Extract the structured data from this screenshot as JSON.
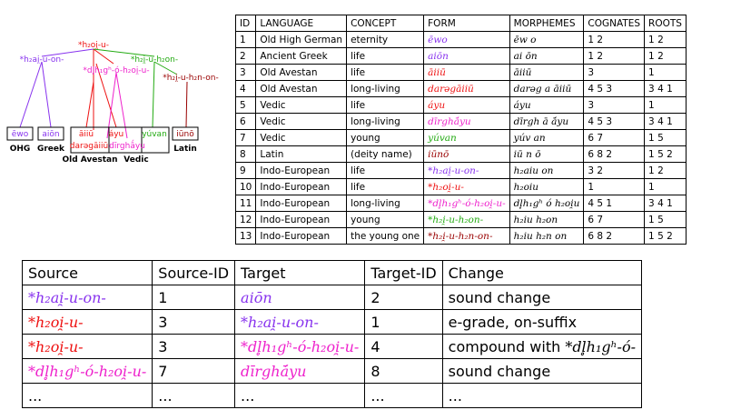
{
  "colors": {
    "red": "#ee1111",
    "purple": "#8833ee",
    "magenta": "#ee22cc",
    "green": "#22aa11",
    "darkred": "#990000",
    "blue": "#3344cc"
  },
  "tree": {
    "nodes": [
      {
        "id": "root",
        "label": "*h₂oi̯-u-",
        "color": "#ee1111"
      },
      {
        "id": "aiu",
        "label": "*h₂ai̯-u-on-",
        "color": "#8833ee"
      },
      {
        "id": "dlih",
        "label": "*dl̥h₁gʰ-ó-h₂oi̯-u-",
        "color": "#ee22cc"
      },
      {
        "id": "young",
        "label": "*h₂i̯-u-h₂on-",
        "color": "#22aa11"
      },
      {
        "id": "latin_proto",
        "label": "*h₂i̯-u-h₂n-on-",
        "color": "#990000"
      }
    ],
    "leaves": [
      {
        "id": "ewo",
        "label": "ēwo",
        "color": "#8833ee"
      },
      {
        "id": "aion",
        "label": "aiōn",
        "color": "#8833ee"
      },
      {
        "id": "aiiu",
        "label": "āiiū",
        "color": "#ee1111"
      },
      {
        "id": "ayu",
        "label": "áyu",
        "color": "#ee1111"
      },
      {
        "id": "yuvan",
        "label": "yúvan",
        "color": "#22aa11"
      },
      {
        "id": "darega",
        "label": "darəgāiiū",
        "color": "#ee1111"
      },
      {
        "id": "dirgha",
        "label": "dīrghā́yu",
        "color": "#ee22cc"
      },
      {
        "id": "iuno",
        "label": "iūnō",
        "color": "#990000"
      }
    ],
    "languages": [
      "OHG",
      "Greek",
      "Old Avestan",
      "Vedic",
      "Latin"
    ]
  },
  "top_table": {
    "headers": [
      "ID",
      "LANGUAGE",
      "CONCEPT",
      "FORM",
      "MORPHEMES",
      "COGNATES",
      "ROOTS"
    ],
    "rows": [
      {
        "id": "1",
        "language": "Old High German",
        "concept": "eternity",
        "form": "ēwo",
        "color": "#8833ee",
        "morphemes": "ēw o",
        "cognates": "1 2",
        "roots": "1 2"
      },
      {
        "id": "2",
        "language": "Ancient Greek",
        "concept": "life",
        "form": "aiōn",
        "color": "#8833ee",
        "morphemes": "ai ōn",
        "cognates": "1 2",
        "roots": "1 2"
      },
      {
        "id": "3",
        "language": "Old Avestan",
        "concept": "life",
        "form": "āiiū",
        "color": "#ee1111",
        "morphemes": "āiiū",
        "cognates": "3",
        "roots": "1"
      },
      {
        "id": "4",
        "language": "Old Avestan",
        "concept": "long-living",
        "form": "darəgāiiū",
        "color": "#ee1111",
        "morphemes": "darəg a āiiū",
        "cognates": "4 5 3",
        "roots": "3 4 1"
      },
      {
        "id": "5",
        "language": "Vedic",
        "concept": "life",
        "form": "áyu",
        "color": "#ee1111",
        "morphemes": "áyu",
        "cognates": "3",
        "roots": "1"
      },
      {
        "id": "6",
        "language": "Vedic",
        "concept": "long-living",
        "form": "dīrghā́yu",
        "color": "#ee22cc",
        "morphemes": "dīrgh ā ā́yu",
        "cognates": "4 5 3",
        "roots": "3 4 1"
      },
      {
        "id": "7",
        "language": "Vedic",
        "concept": "young",
        "form": "yúvan",
        "color": "#22aa11",
        "morphemes": "yúv an",
        "cognates": "6 7",
        "roots": "1 5"
      },
      {
        "id": "8",
        "language": "Latin",
        "concept": "(deity name)",
        "form": "iūnō",
        "color": "#990000",
        "morphemes": "iū n ō",
        "cognates": "6 8 2",
        "roots": "1 5 2"
      },
      {
        "id": "9",
        "language": "Indo-European",
        "concept": "life",
        "form": "*h₂ai̯-u-on-",
        "color": "#8833ee",
        "morphemes": "h₂aiu on",
        "cognates": "3 2",
        "roots": "1 2"
      },
      {
        "id": "10",
        "language": "Indo-European",
        "concept": "life",
        "form": "*h₂oi̯-u-",
        "color": "#ee1111",
        "morphemes": "h₂oiu",
        "cognates": "1",
        "roots": "1"
      },
      {
        "id": "11",
        "language": "Indo-European",
        "concept": "long-living",
        "form": "*dl̥h₁gʰ-ó-h₂oi̯-u-",
        "color": "#ee22cc",
        "morphemes": "dl̥h₁gʰ ó h₂oi̯u",
        "cognates": "4 5 1",
        "roots": "3 4 1"
      },
      {
        "id": "12",
        "language": "Indo-European",
        "concept": "young",
        "form": "*h₂i̯-u-h₂on-",
        "color": "#22aa11",
        "morphemes": "h₂iu h₂on",
        "cognates": "6 7",
        "roots": "1 5"
      },
      {
        "id": "13",
        "language": "Indo-European",
        "concept": "the young one",
        "form": "*h₂i̯-u-h₂n-on-",
        "color": "#990000",
        "morphemes": "h₂iu h₂n on",
        "cognates": "6 8 2",
        "roots": "1 5 2"
      }
    ]
  },
  "bottom_table": {
    "headers": [
      "Source",
      "Source-ID",
      "Target",
      "Target-ID",
      "Change"
    ],
    "rows": [
      {
        "source": "*h₂ai̯-u-on-",
        "source_color": "#8833ee",
        "source_id": "1",
        "target": "aiōn",
        "target_color": "#8833ee",
        "target_id": "2",
        "change": "sound change",
        "change_form": "",
        "change_color": ""
      },
      {
        "source": "*h₂oi̯-u-",
        "source_color": "#ee1111",
        "source_id": "3",
        "target": "*h₂ai̯-u-on-",
        "target_color": "#8833ee",
        "target_id": "1",
        "change": "e-grade, on-suffix",
        "change_form": "",
        "change_color": ""
      },
      {
        "source": "*h₂oi̯-u-",
        "source_color": "#ee1111",
        "source_id": "3",
        "target": "*dl̥h₁gʰ-ó-h₂oi̯-u-",
        "target_color": "#ee22cc",
        "target_id": "4",
        "change": "compound with ",
        "change_form": "*dl̥h₁gʰ-ó-",
        "change_color": "#000000"
      },
      {
        "source": "*dl̥h₁gʰ-ó-h₂oi̯-u-",
        "source_color": "#ee22cc",
        "source_id": "7",
        "target": "dīrghā́yu",
        "target_color": "#ee22cc",
        "target_id": "8",
        "change": "sound change",
        "change_form": "",
        "change_color": ""
      },
      {
        "source": "...",
        "source_color": "#000000",
        "source_id": "...",
        "target": "...",
        "target_color": "#000000",
        "target_id": "...",
        "change": "...",
        "change_form": "",
        "change_color": ""
      }
    ]
  }
}
